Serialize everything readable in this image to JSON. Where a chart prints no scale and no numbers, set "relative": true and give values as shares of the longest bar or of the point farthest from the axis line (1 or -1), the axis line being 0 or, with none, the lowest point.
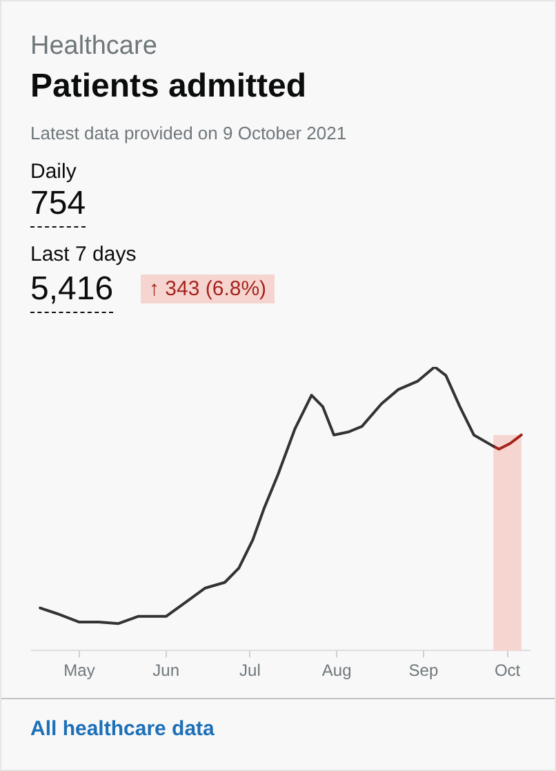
{
  "chart_data": {
    "type": "line",
    "subtitle": "Healthcare",
    "title": "Patients admitted",
    "annotations": [
      "Latest data provided on 9 October 2021",
      "Daily",
      "754",
      "Last 7 days",
      "5,416",
      "↑ 343 (6.8%)",
      "All healthcare data"
    ],
    "relative": true,
    "grid": false,
    "legend": false,
    "marker": "none",
    "line_style": "solid",
    "xlim": [
      "2021-04-14",
      "2021-10-09"
    ],
    "xticks": [
      {
        "value": "2021-05-01",
        "label": "May"
      },
      {
        "value": "2021-06-01",
        "label": "Jun"
      },
      {
        "value": "2021-07-01",
        "label": "Jul"
      },
      {
        "value": "2021-08-01",
        "label": "Aug"
      },
      {
        "value": "2021-09-01",
        "label": "Sep"
      },
      {
        "value": "2021-10-01",
        "label": "Oct"
      }
    ],
    "bands": [
      {
        "axis": "x",
        "from": "2021-09-26",
        "to": "2021-10-06",
        "color": "#f6d5d0"
      }
    ],
    "series": [
      {
        "color": "#333333",
        "x": [
          "2021-04-17",
          "2021-04-23",
          "2021-05-01",
          "2021-05-08",
          "2021-05-15",
          "2021-05-22",
          "2021-05-27",
          "2021-06-01",
          "2021-06-08",
          "2021-06-15",
          "2021-06-22",
          "2021-06-27",
          "2021-07-02",
          "2021-07-06",
          "2021-07-11",
          "2021-07-17",
          "2021-07-23",
          "2021-07-27",
          "2021-07-31",
          "2021-08-05",
          "2021-08-10",
          "2021-08-17",
          "2021-08-23",
          "2021-08-30",
          "2021-09-05",
          "2021-09-09",
          "2021-09-14",
          "2021-09-19",
          "2021-09-26"
        ],
        "values": [
          0.15,
          0.13,
          0.1,
          0.1,
          0.095,
          0.12,
          0.12,
          0.12,
          0.17,
          0.22,
          0.24,
          0.29,
          0.39,
          0.5,
          0.62,
          0.78,
          0.9,
          0.86,
          0.76,
          0.77,
          0.79,
          0.87,
          0.92,
          0.95,
          1,
          0.97,
          0.86,
          0.76,
          0.72
        ]
      },
      {
        "color": "#a5231c",
        "x": [
          "2021-09-26",
          "2021-09-28",
          "2021-10-02",
          "2021-10-06"
        ],
        "values": [
          0.72,
          0.71,
          0.73,
          0.76
        ]
      }
    ]
  }
}
